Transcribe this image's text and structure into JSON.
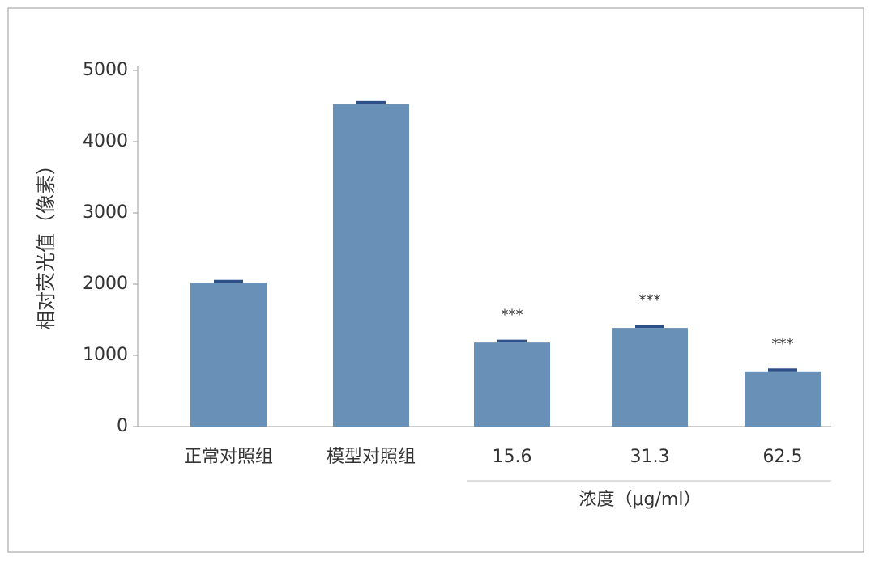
{
  "chart_data": {
    "type": "bar",
    "ylabel": "相对荧光值（像素）",
    "xlabel": "浓度（μg/ml）",
    "categories": [
      "正常对照组",
      "模型对照组",
      "15.6",
      "31.3",
      "62.5"
    ],
    "values": [
      2020,
      4530,
      1180,
      1385,
      775
    ],
    "errors": [
      40,
      40,
      40,
      40,
      40
    ],
    "annotations": [
      null,
      null,
      "***",
      "***",
      "***"
    ],
    "color": "#6990b7",
    "error_color": "#2e5088",
    "ylim": [
      0,
      5000
    ],
    "yticks": [
      0,
      1000,
      2000,
      3000,
      4000,
      5000
    ],
    "grid": false
  }
}
